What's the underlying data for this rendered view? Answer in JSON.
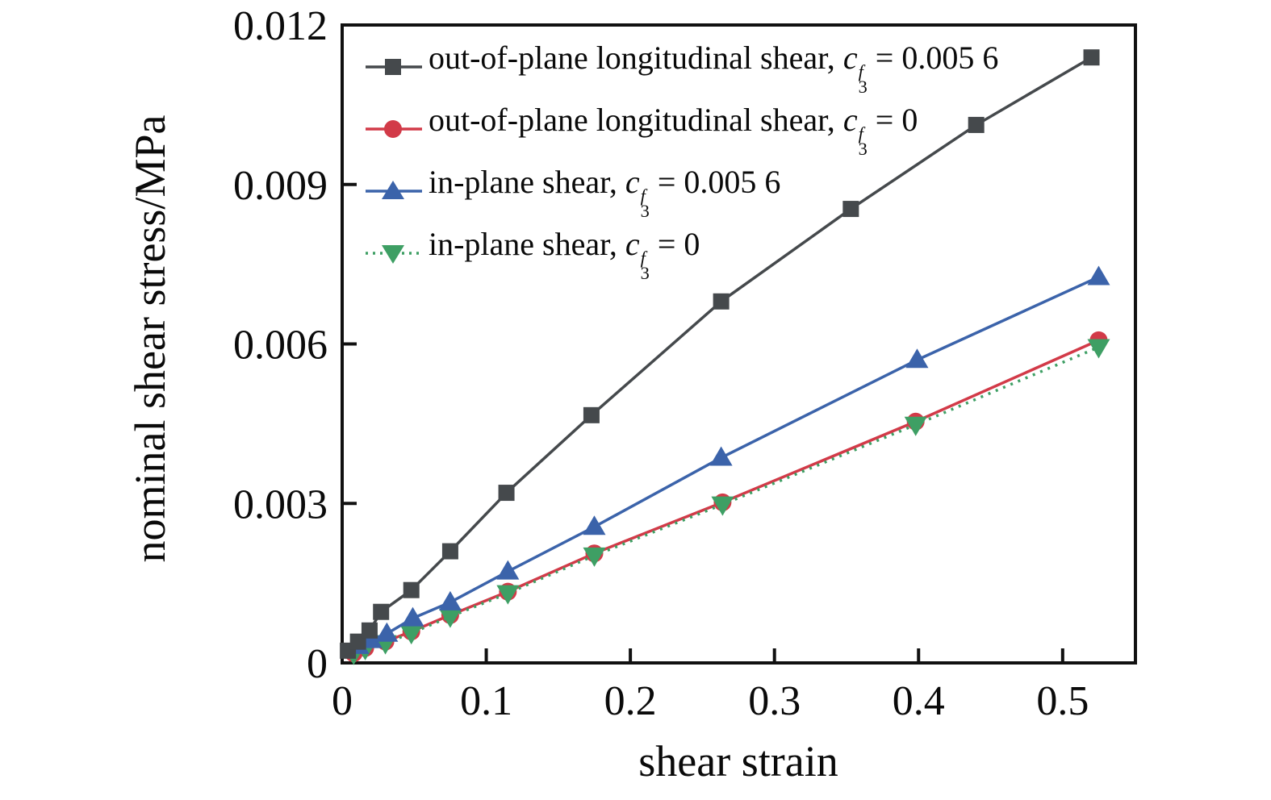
{
  "figure": {
    "background": "#ffffff",
    "frame_color": "#111111",
    "text_color": "#0a0a0a"
  },
  "chart_data": {
    "type": "line",
    "title": "",
    "xlabel": "shear strain",
    "ylabel": "nominal shear stress/MPa",
    "xlim": [
      0,
      0.5505
    ],
    "ylim": [
      0,
      0.012
    ],
    "grid": false,
    "legend_position": "top-left-inside",
    "xticks": [
      0,
      0.1,
      0.2,
      0.3,
      0.4,
      0.5
    ],
    "xtick_labels": [
      "0",
      "0.1",
      "0.2",
      "0.3",
      "0.4",
      "0.5"
    ],
    "yticks": [
      0,
      0.003,
      0.006,
      0.009,
      0.012
    ],
    "ytick_labels": [
      "0",
      "0.003",
      "0.006",
      "0.009",
      "0.012"
    ],
    "series": [
      {
        "id": "black",
        "name": "out-of-plane longitudinal shear, c3^f = 0.005 6",
        "color": "#45494c",
        "marker": "square",
        "line": "solid",
        "x": [
          0.004,
          0.011,
          0.019,
          0.027,
          0.048,
          0.075,
          0.114,
          0.173,
          0.263,
          0.353,
          0.44,
          0.52
        ],
        "y": [
          0.00023,
          0.0004,
          0.00061,
          0.00096,
          0.00137,
          0.0021,
          0.0032,
          0.00466,
          0.0068,
          0.00854,
          0.01012,
          0.01139
        ]
      },
      {
        "id": "red",
        "name": "out-of-plane longitudinal shear, c3^f = 0",
        "color": "#d23a48",
        "marker": "circle",
        "line": "solid",
        "x": [
          0.008,
          0.016,
          0.03,
          0.048,
          0.075,
          0.115,
          0.175,
          0.264,
          0.398,
          0.525
        ],
        "y": [
          0.00018,
          0.00028,
          0.0004,
          0.00059,
          0.0009,
          0.00134,
          0.00206,
          0.00302,
          0.00454,
          0.00607
        ]
      },
      {
        "id": "blue",
        "name": "in-plane shear, c3^f = 0.005 6",
        "color": "#3b63aa",
        "marker": "triangle-up",
        "line": "solid",
        "x": [
          0.011,
          0.02,
          0.031,
          0.049,
          0.075,
          0.115,
          0.175,
          0.263,
          0.399,
          0.525
        ],
        "y": [
          0.00032,
          0.00043,
          0.00055,
          0.00084,
          0.00114,
          0.00172,
          0.00256,
          0.00386,
          0.0057,
          0.00726
        ]
      },
      {
        "id": "green",
        "name": "in-plane shear, c3^f = 0",
        "color": "#3e9f64",
        "marker": "triangle-down",
        "line": "dotted",
        "x": [
          0.008,
          0.016,
          0.03,
          0.048,
          0.075,
          0.115,
          0.175,
          0.264,
          0.398,
          0.525
        ],
        "y": [
          0.00017,
          0.00026,
          0.00037,
          0.00056,
          0.00087,
          0.00131,
          0.00202,
          0.00298,
          0.00448,
          0.00594
        ]
      }
    ]
  },
  "legend": {
    "items": [
      {
        "series_id": "black",
        "prefix": "out-of-plane longitudinal shear, ",
        "sym": "c",
        "sup": "f",
        "sub": "3",
        "rest": " = 0.005 6"
      },
      {
        "series_id": "red",
        "prefix": "out-of-plane longitudinal shear, ",
        "sym": "c",
        "sup": "f",
        "sub": "3",
        "rest": " = 0"
      },
      {
        "series_id": "blue",
        "prefix": "in-plane shear, ",
        "sym": "c",
        "sup": "f",
        "sub": "3",
        "rest": " = 0.005 6"
      },
      {
        "series_id": "green",
        "prefix": "in-plane shear, ",
        "sym": "c",
        "sup": "f",
        "sub": "3",
        "rest": " = 0"
      }
    ]
  }
}
